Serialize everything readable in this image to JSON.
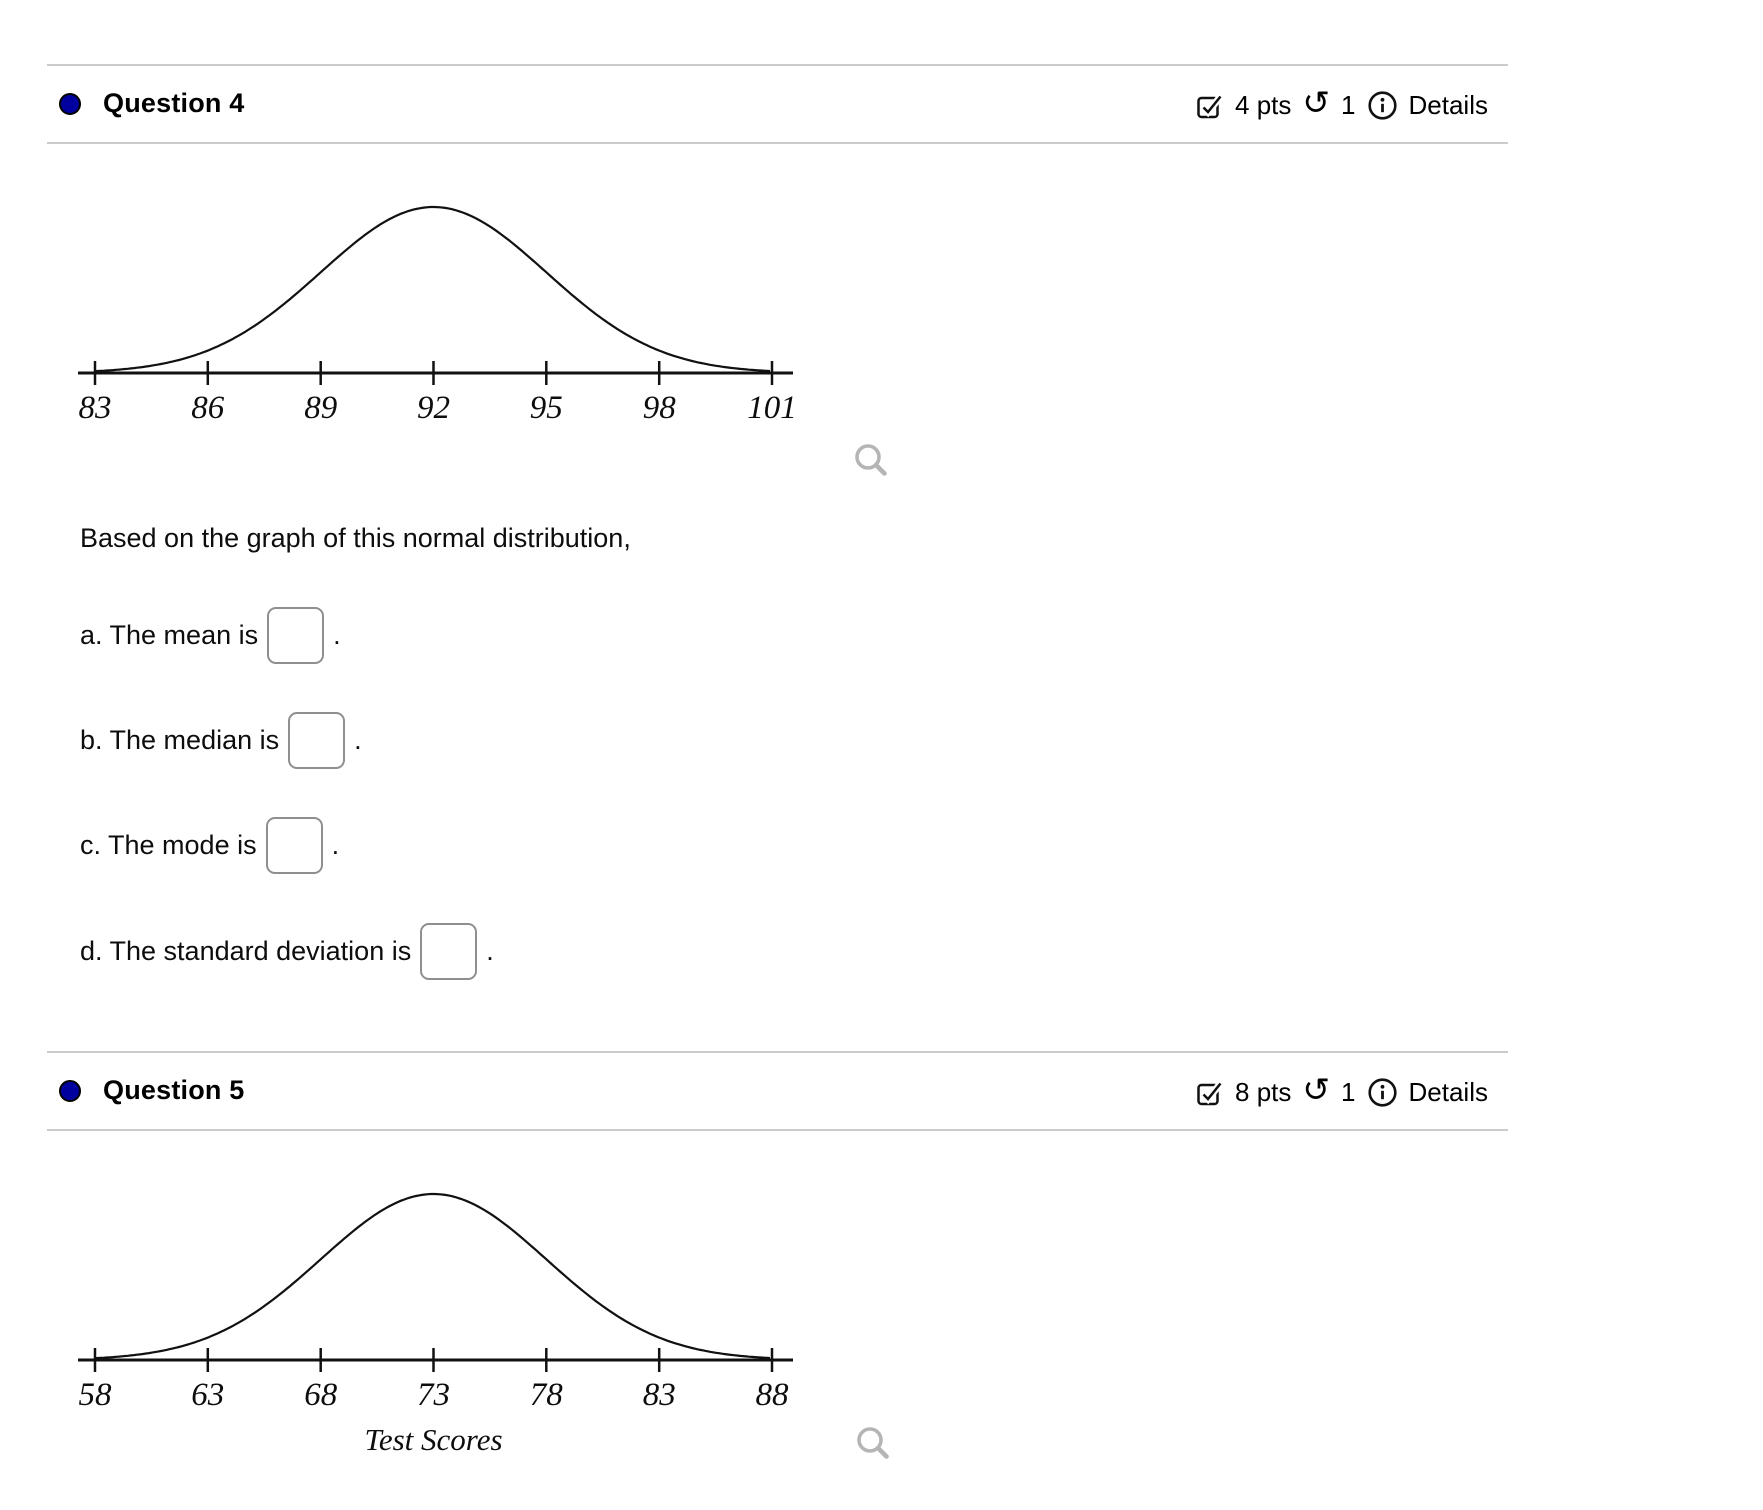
{
  "page": {
    "background": "#ffffff",
    "colors": {
      "status_dot": "#00009e",
      "divider": "#cbcbcb",
      "zoom_icon_gray": "#b5b5b5",
      "text": "#000000"
    }
  },
  "icons": {
    "points_icon": "check-square",
    "attempts_icon": "undo-arrow",
    "attempts_glyph": "↺",
    "details_icon": "info-circle",
    "graph_zoom_icon": "magnifier"
  },
  "questions": [
    {
      "title": "Question 4",
      "points_label": "4 pts",
      "attempts_count": "1",
      "details_label": "Details",
      "prompt": "Based on the graph of this normal distribution,",
      "parts": [
        {
          "label": "a. The mean is",
          "suffix": ".",
          "value": ""
        },
        {
          "label": "b. The median is",
          "suffix": ".",
          "value": ""
        },
        {
          "label": "c. The mode is",
          "suffix": ".",
          "value": ""
        },
        {
          "label": "d. The standard deviation is",
          "suffix": ".",
          "value": ""
        }
      ]
    },
    {
      "title": "Question 5",
      "points_label": "8 pts",
      "attempts_count": "1",
      "details_label": "Details",
      "prompt": "",
      "parts": []
    }
  ],
  "chart_data": [
    {
      "type": "line",
      "curve": "normal-distribution-bell",
      "title": "",
      "xlabel": "",
      "x_ticks": [
        83,
        86,
        89,
        92,
        95,
        98,
        101
      ],
      "mean": 92,
      "sd": 3,
      "x_range": [
        83,
        101
      ],
      "grid": false,
      "legend": false
    },
    {
      "type": "line",
      "curve": "normal-distribution-bell",
      "title": "",
      "xlabel": "Test Scores",
      "x_ticks": [
        58,
        63,
        68,
        73,
        78,
        83,
        88
      ],
      "mean": 73,
      "sd": 5,
      "x_range": [
        58,
        88
      ],
      "grid": false,
      "legend": false
    }
  ]
}
